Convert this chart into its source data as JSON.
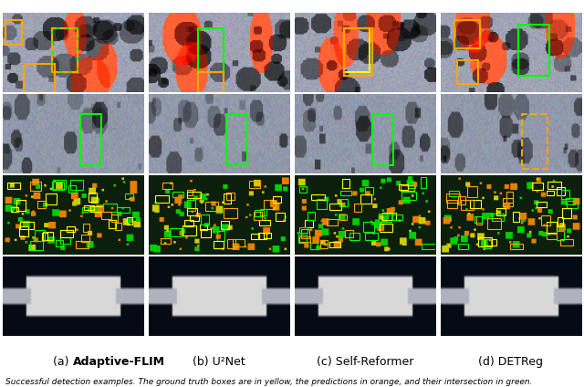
{
  "figure_width": 6.4,
  "figure_height": 4.24,
  "dpi": 100,
  "columns": 4,
  "rows": 4,
  "captions": [
    "(a) Adaptive-FLIM",
    "(b) U²Net",
    "(c) Self-Reformer",
    "(d) DETReg"
  ],
  "footer_text": "Successful detection examples. The ground truth boxes are in yellow, the predictions in orange, and their intersection in green.",
  "bg_color": "#ffffff",
  "caption_fontsize": 9,
  "footer_fontsize": 6.5
}
